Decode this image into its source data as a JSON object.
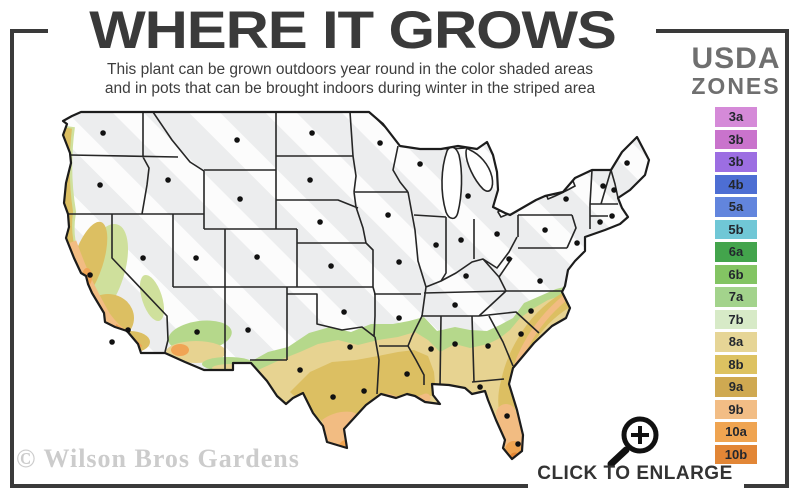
{
  "header": {
    "title": "WHERE IT GROWS",
    "subtitle_line1": "This plant can be grown outdoors year round in the color shaded areas",
    "subtitle_line2": "and in pots that can be brought indoors during winter in the striped area"
  },
  "legend": {
    "title_line1": "USDA",
    "title_line2": "ZONES",
    "zones": [
      {
        "label": "3a",
        "color": "#d58ad8"
      },
      {
        "label": "3b",
        "color": "#c973cc"
      },
      {
        "label": "3b",
        "color": "#9c6ee2"
      },
      {
        "label": "4b",
        "color": "#4d6ed3"
      },
      {
        "label": "5a",
        "color": "#6285dd"
      },
      {
        "label": "5b",
        "color": "#70c7d6"
      },
      {
        "label": "6a",
        "color": "#43a44c"
      },
      {
        "label": "6b",
        "color": "#83c463"
      },
      {
        "label": "7a",
        "color": "#a3d38c"
      },
      {
        "label": "7b",
        "color": "#d7eac7"
      },
      {
        "label": "8a",
        "color": "#e6d596"
      },
      {
        "label": "8b",
        "color": "#ddc261"
      },
      {
        "label": "9a",
        "color": "#cfa951"
      },
      {
        "label": "9b",
        "color": "#f2bd85"
      },
      {
        "label": "10a",
        "color": "#efa451"
      },
      {
        "label": "10b",
        "color": "#e28636"
      }
    ]
  },
  "map": {
    "watermark": "© Wilson Bros Gardens",
    "base_color": "#ecedee",
    "outline_color": "#1c1c1c"
  },
  "footer": {
    "enlarge_label": "CLICK TO ENLARGE",
    "magnifier_icon": "magnifying-glass-plus-icon"
  },
  "colors": {
    "frame": "#3a3a3a",
    "title": "#3a3a3a",
    "watermark_gray": "#cccccc"
  }
}
